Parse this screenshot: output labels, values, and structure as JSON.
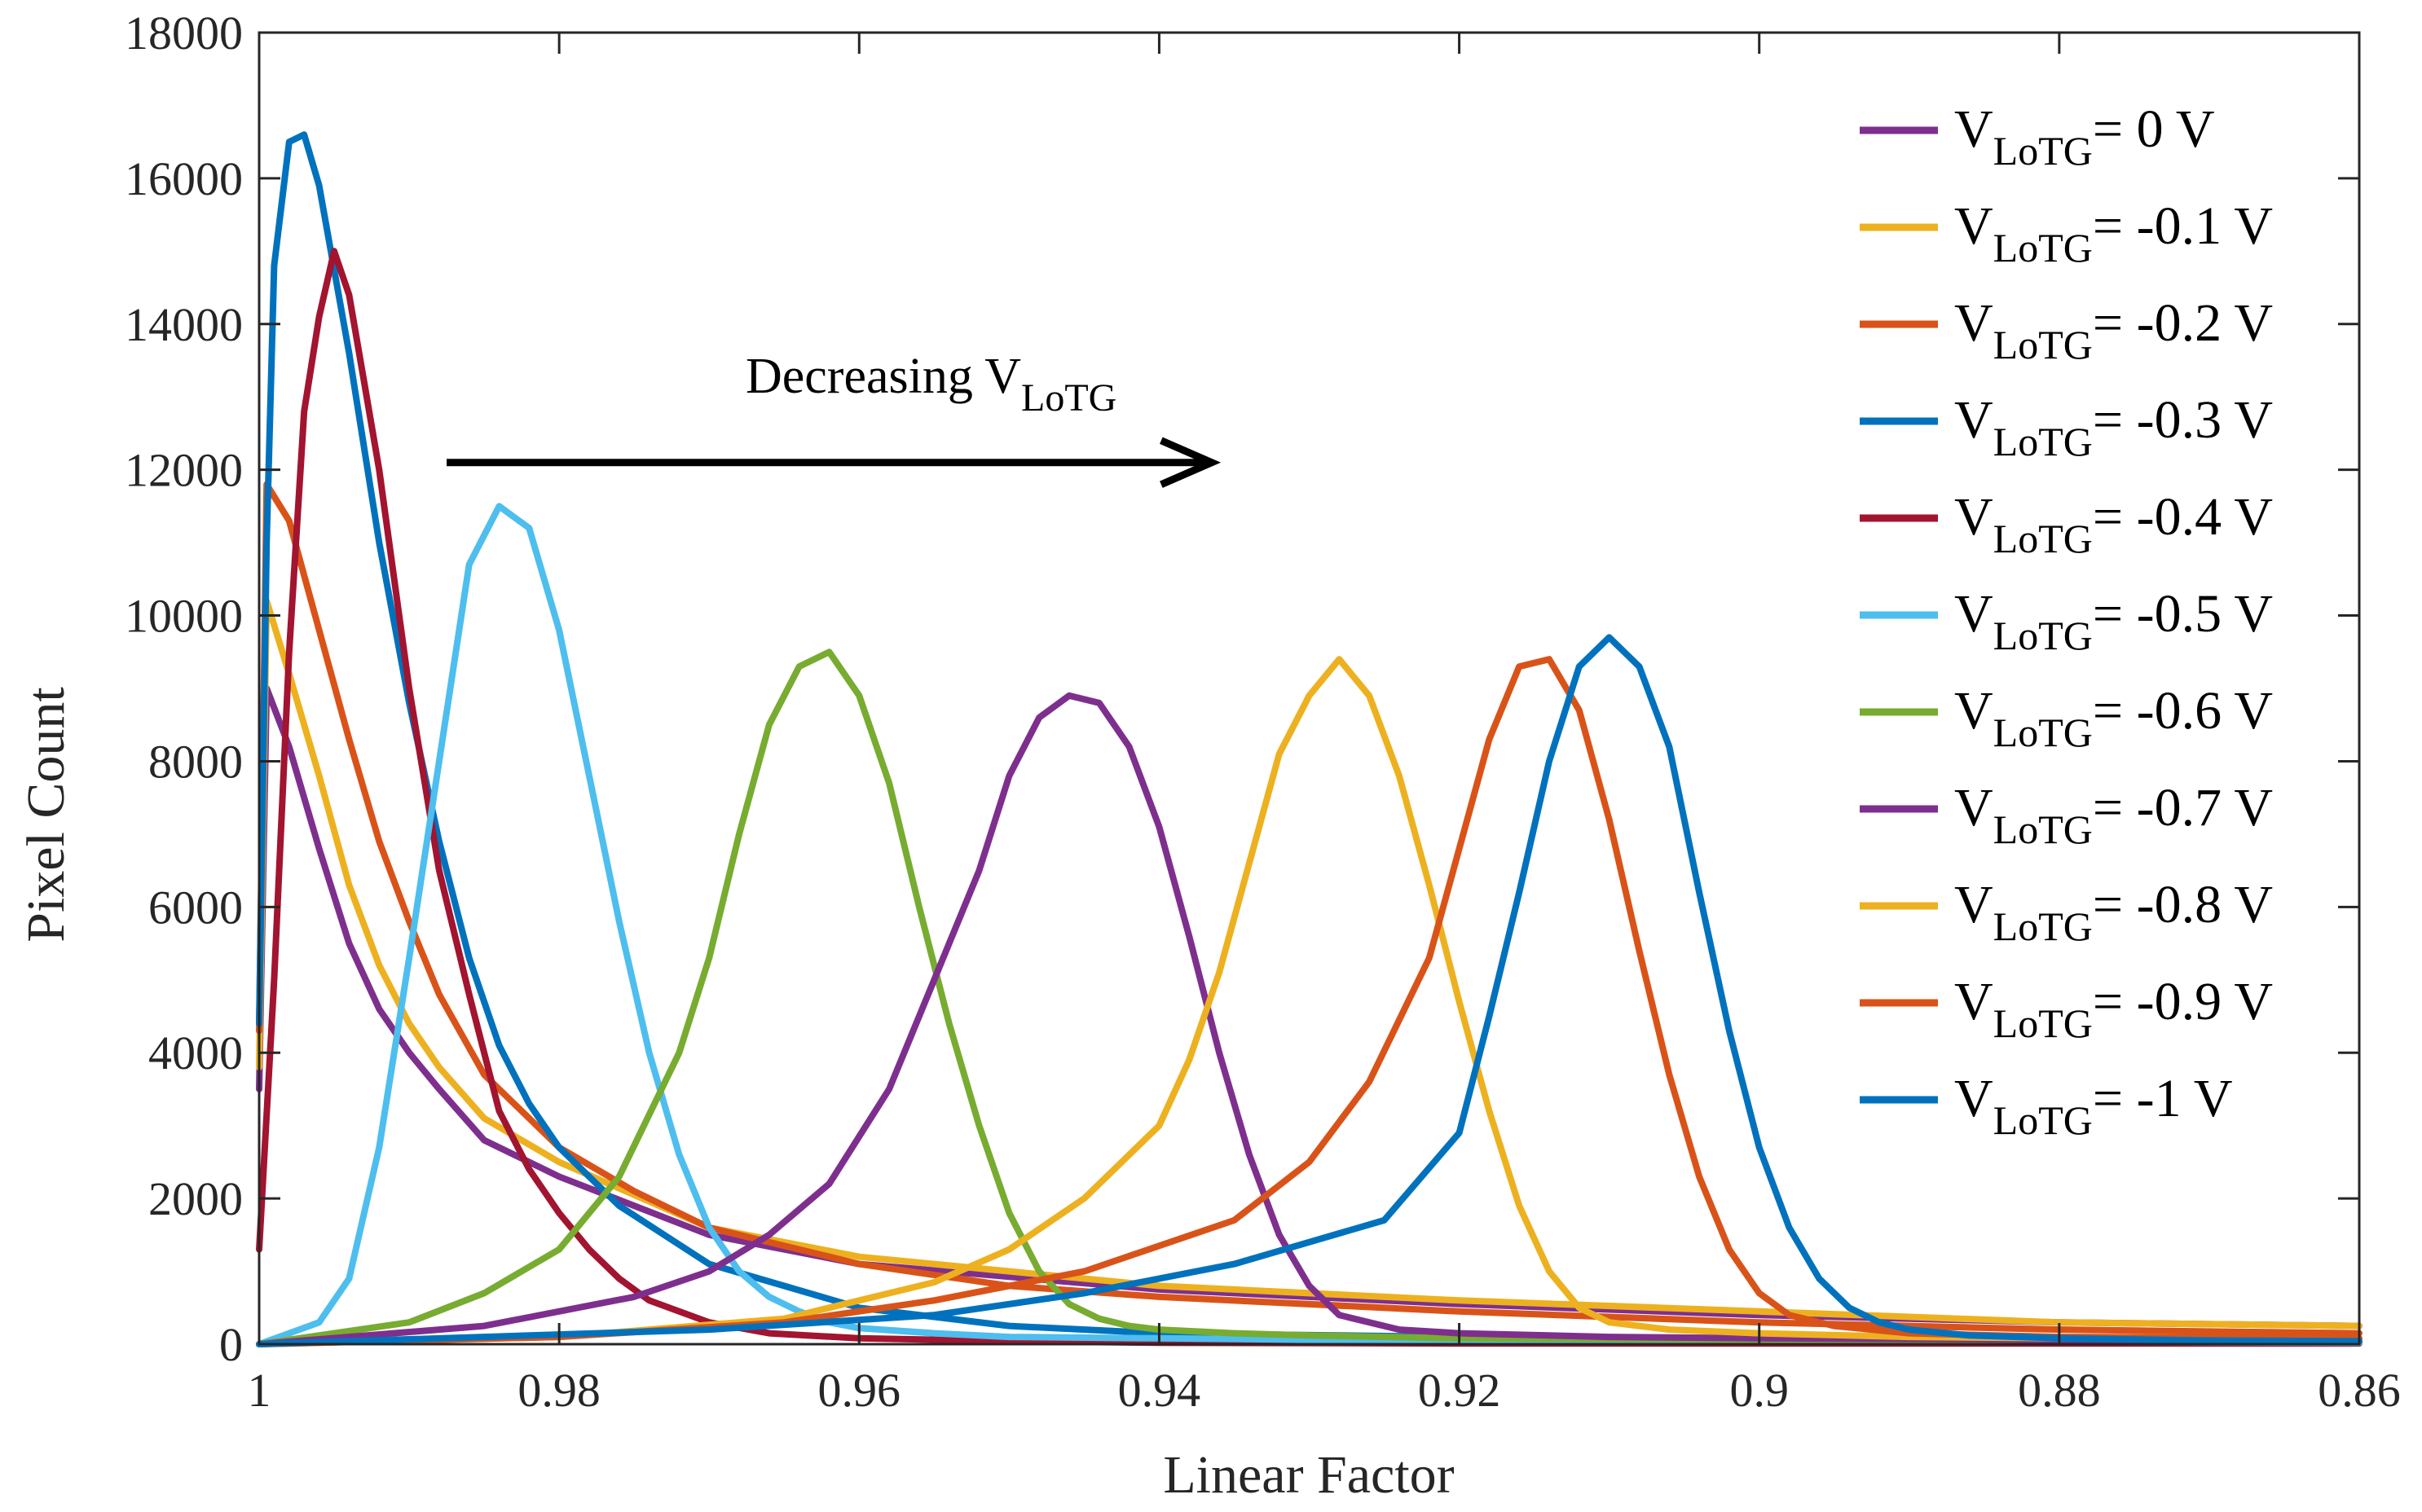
{
  "chart_data": {
    "type": "line",
    "title": "",
    "xlabel": "Linear Factor",
    "ylabel": "Pixel Count",
    "xlim": [
      1,
      0.86
    ],
    "x_reversed": true,
    "ylim": [
      0,
      18000
    ],
    "xticks": [
      1,
      0.98,
      0.96,
      0.94,
      0.92,
      0.9,
      0.88,
      0.86
    ],
    "xtick_labels": [
      "1",
      "0.98",
      "0.96",
      "0.94",
      "0.92",
      "0.9",
      "0.88",
      "0.86"
    ],
    "yticks": [
      0,
      2000,
      4000,
      6000,
      8000,
      10000,
      12000,
      14000,
      16000,
      18000
    ],
    "ytick_labels": [
      "0",
      "2000",
      "4000",
      "6000",
      "8000",
      "10000",
      "12000",
      "14000",
      "16000",
      "18000"
    ],
    "grid": false,
    "legend_position": "top-right",
    "annotation": {
      "text": "Decreasing V",
      "subscript": "LoTG",
      "arrow_from": [
        0.9875,
        12100
      ],
      "arrow_to": [
        0.9365,
        12100
      ]
    },
    "series": [
      {
        "name": "V LoTG = 0 V",
        "label_main": "V",
        "label_sub": "LoTG",
        "label_value": "= 0 V",
        "color": "#7E2F8E",
        "x": [
          1.0,
          0.9995,
          0.998,
          0.996,
          0.994,
          0.992,
          0.99,
          0.988,
          0.985,
          0.98,
          0.97,
          0.96,
          0.94,
          0.92,
          0.9,
          0.88,
          0.86
        ],
        "y": [
          3500,
          9000,
          8200,
          6800,
          5500,
          4600,
          4000,
          3500,
          2800,
          2300,
          1500,
          1100,
          750,
          550,
          400,
          300,
          250
        ]
      },
      {
        "name": "V LoTG = -0.1 V",
        "label_main": "V",
        "label_sub": "LoTG",
        "label_value": "= -0.1 V",
        "color": "#EDB120",
        "x": [
          1.0,
          0.9995,
          0.998,
          0.996,
          0.994,
          0.992,
          0.99,
          0.988,
          0.985,
          0.98,
          0.97,
          0.96,
          0.94,
          0.92,
          0.9,
          0.88,
          0.86
        ],
        "y": [
          3800,
          10200,
          9200,
          7800,
          6300,
          5200,
          4400,
          3800,
          3100,
          2500,
          1600,
          1200,
          800,
          600,
          450,
          300,
          250
        ]
      },
      {
        "name": "V LoTG = -0.2 V",
        "label_main": "V",
        "label_sub": "LoTG",
        "label_value": "= -0.2 V",
        "color": "#D95319",
        "x": [
          1.0,
          0.9995,
          0.998,
          0.996,
          0.994,
          0.992,
          0.99,
          0.988,
          0.985,
          0.98,
          0.975,
          0.97,
          0.96,
          0.95,
          0.94,
          0.92,
          0.9,
          0.88,
          0.86
        ],
        "y": [
          4300,
          11800,
          11300,
          9800,
          8300,
          6900,
          5800,
          4800,
          3700,
          2700,
          2100,
          1600,
          1100,
          800,
          650,
          450,
          300,
          200,
          150
        ]
      },
      {
        "name": "V LoTG = -0.3 V",
        "label_main": "V",
        "label_sub": "LoTG",
        "label_value": "= -0.3 V",
        "color": "#0072BD",
        "x": [
          1.0,
          0.9995,
          0.999,
          0.998,
          0.997,
          0.996,
          0.994,
          0.992,
          0.99,
          0.988,
          0.986,
          0.984,
          0.982,
          0.98,
          0.976,
          0.97,
          0.96,
          0.95,
          0.94,
          0.92,
          0.9,
          0.88,
          0.86
        ],
        "y": [
          4400,
          11000,
          14800,
          16500,
          16600,
          15900,
          13600,
          11000,
          8800,
          6900,
          5300,
          4100,
          3300,
          2700,
          1900,
          1100,
          500,
          250,
          150,
          100,
          80,
          60,
          50
        ]
      },
      {
        "name": "V LoTG = -0.4 V",
        "label_main": "V",
        "label_sub": "LoTG",
        "label_value": "= -0.4 V",
        "color": "#A2142F",
        "x": [
          1.0,
          0.999,
          0.998,
          0.997,
          0.996,
          0.995,
          0.994,
          0.993,
          0.992,
          0.991,
          0.99,
          0.988,
          0.986,
          0.984,
          0.982,
          0.98,
          0.978,
          0.976,
          0.974,
          0.97,
          0.966,
          0.96,
          0.95,
          0.94,
          0.92,
          0.9,
          0.88,
          0.86
        ],
        "y": [
          1300,
          5000,
          9500,
          12800,
          14100,
          15000,
          14400,
          13200,
          12000,
          10500,
          9000,
          6500,
          4800,
          3200,
          2400,
          1800,
          1300,
          900,
          600,
          300,
          150,
          80,
          40,
          20,
          10,
          10,
          10,
          10
        ]
      },
      {
        "name": "V LoTG = -0.5 V",
        "label_main": "V",
        "label_sub": "LoTG",
        "label_value": "= -0.5 V",
        "color": "#4DBEEE",
        "x": [
          1.0,
          0.996,
          0.994,
          0.992,
          0.99,
          0.988,
          0.986,
          0.984,
          0.982,
          0.98,
          0.978,
          0.976,
          0.974,
          0.972,
          0.97,
          0.968,
          0.966,
          0.964,
          0.962,
          0.96,
          0.955,
          0.95,
          0.94,
          0.93,
          0.92,
          0.9,
          0.88,
          0.86
        ],
        "y": [
          0,
          300,
          900,
          2700,
          5300,
          8000,
          10700,
          11500,
          11200,
          9800,
          7800,
          5800,
          4000,
          2600,
          1600,
          1000,
          650,
          450,
          300,
          220,
          150,
          100,
          80,
          60,
          50,
          40,
          30,
          20
        ]
      },
      {
        "name": "V LoTG = -0.6 V",
        "label_main": "V",
        "label_sub": "LoTG",
        "label_value": "= -0.6 V",
        "color": "#77AC30",
        "x": [
          1.0,
          0.99,
          0.985,
          0.98,
          0.976,
          0.972,
          0.97,
          0.968,
          0.966,
          0.964,
          0.962,
          0.96,
          0.958,
          0.956,
          0.954,
          0.952,
          0.95,
          0.948,
          0.946,
          0.944,
          0.942,
          0.94,
          0.935,
          0.93,
          0.92,
          0.9,
          0.88,
          0.86
        ],
        "y": [
          0,
          300,
          700,
          1300,
          2300,
          4000,
          5300,
          7000,
          8500,
          9300,
          9500,
          8900,
          7700,
          6000,
          4400,
          3000,
          1800,
          1000,
          550,
          350,
          250,
          200,
          150,
          120,
          80,
          60,
          50,
          40
        ]
      },
      {
        "name": "V LoTG = -0.7 V",
        "label_main": "V",
        "label_sub": "LoTG",
        "label_value": "= -0.7 V",
        "color": "#7E2F8E",
        "x": [
          1.0,
          0.985,
          0.975,
          0.97,
          0.966,
          0.962,
          0.958,
          0.955,
          0.952,
          0.95,
          0.948,
          0.946,
          0.944,
          0.942,
          0.94,
          0.938,
          0.936,
          0.934,
          0.932,
          0.93,
          0.928,
          0.924,
          0.92,
          0.91,
          0.9,
          0.88,
          0.86
        ],
        "y": [
          0,
          250,
          650,
          1000,
          1500,
          2200,
          3500,
          5000,
          6500,
          7800,
          8600,
          8900,
          8800,
          8200,
          7100,
          5600,
          4000,
          2600,
          1500,
          800,
          400,
          200,
          150,
          100,
          80,
          60,
          50
        ]
      },
      {
        "name": "V LoTG = -0.8 V",
        "label_main": "V",
        "label_sub": "LoTG",
        "label_value": "= -0.8 V",
        "color": "#EDB120",
        "x": [
          1.0,
          0.98,
          0.965,
          0.955,
          0.95,
          0.945,
          0.94,
          0.938,
          0.936,
          0.934,
          0.932,
          0.93,
          0.928,
          0.926,
          0.924,
          0.922,
          0.92,
          0.918,
          0.916,
          0.914,
          0.912,
          0.91,
          0.906,
          0.9,
          0.89,
          0.88,
          0.86
        ],
        "y": [
          0,
          100,
          350,
          850,
          1300,
          2000,
          3000,
          3900,
          5100,
          6600,
          8100,
          8900,
          9400,
          8900,
          7800,
          6300,
          4700,
          3200,
          1900,
          1000,
          500,
          300,
          200,
          150,
          100,
          80,
          60
        ]
      },
      {
        "name": "V LoTG = -0.9 V",
        "label_main": "V",
        "label_sub": "LoTG",
        "label_value": "= -0.9 V",
        "color": "#D95319",
        "x": [
          1.0,
          0.98,
          0.965,
          0.955,
          0.945,
          0.935,
          0.93,
          0.926,
          0.922,
          0.92,
          0.918,
          0.916,
          0.914,
          0.912,
          0.91,
          0.908,
          0.906,
          0.904,
          0.902,
          0.9,
          0.898,
          0.895,
          0.89,
          0.88,
          0.86
        ],
        "y": [
          0,
          100,
          300,
          600,
          1000,
          1700,
          2500,
          3600,
          5300,
          6800,
          8300,
          9300,
          9400,
          8700,
          7200,
          5400,
          3700,
          2300,
          1300,
          700,
          400,
          250,
          150,
          100,
          80
        ]
      },
      {
        "name": "V LoTG = -1 V",
        "label_main": "V",
        "label_sub": "LoTG",
        "label_value": "= -1 V",
        "color": "#0072BD",
        "x": [
          1.0,
          0.97,
          0.955,
          0.945,
          0.935,
          0.925,
          0.92,
          0.918,
          0.916,
          0.914,
          0.912,
          0.91,
          0.908,
          0.906,
          0.904,
          0.902,
          0.9,
          0.898,
          0.896,
          0.894,
          0.892,
          0.89,
          0.886,
          0.88,
          0.87,
          0.86
        ],
        "y": [
          0,
          200,
          400,
          700,
          1100,
          1700,
          2900,
          4500,
          6200,
          8000,
          9300,
          9700,
          9300,
          8200,
          6200,
          4300,
          2700,
          1600,
          900,
          500,
          300,
          200,
          120,
          80,
          50,
          40
        ]
      }
    ]
  }
}
